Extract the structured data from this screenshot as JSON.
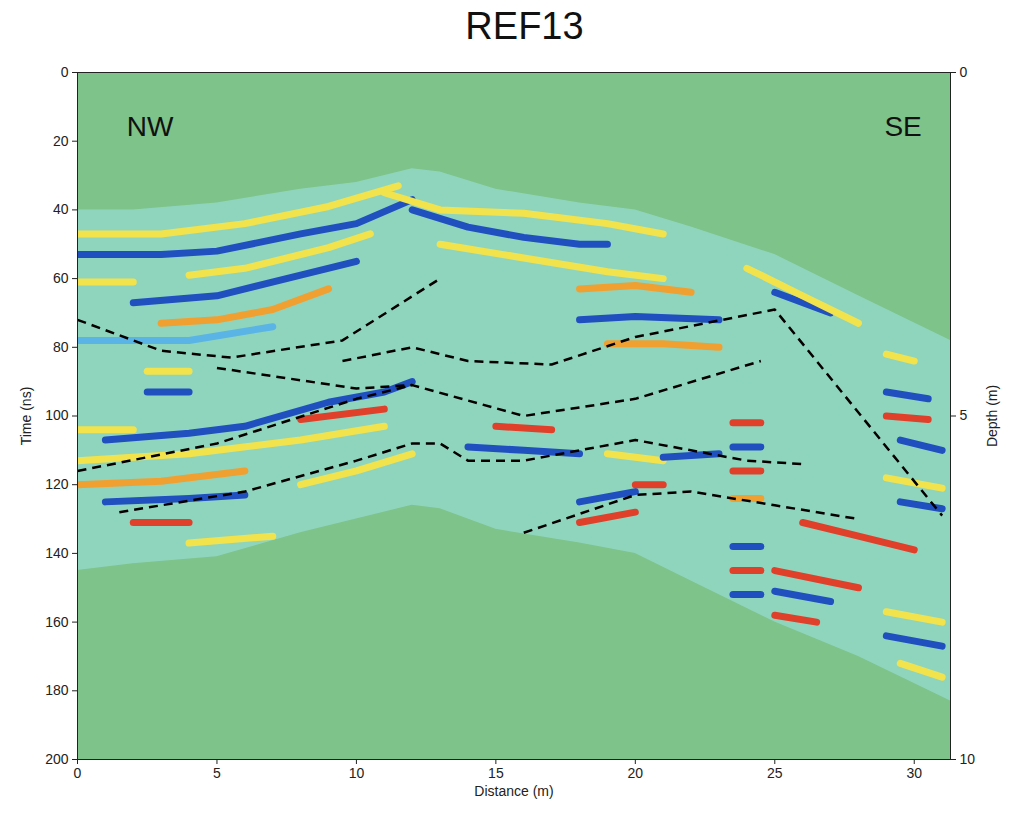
{
  "chart_data": {
    "type": "line",
    "title": "REF13",
    "x_label": "Distance (m)",
    "y_label": "Time (ns)",
    "y2_label": "Depth (m)",
    "xlim": [
      0,
      31.3
    ],
    "xticks": [
      0,
      5,
      10,
      15,
      20,
      25,
      30
    ],
    "ylim": [
      0,
      200
    ],
    "yticks": [
      0,
      20,
      40,
      60,
      80,
      100,
      120,
      140,
      160,
      180,
      200
    ],
    "y2lim": [
      0,
      10
    ],
    "y2ticks": [
      0,
      5,
      10
    ],
    "color": "#7dc38a",
    "grid": false,
    "annotations": [
      {
        "text": "NW",
        "x": 2.6,
        "y": 16
      },
      {
        "text": "SE",
        "x": 29.6,
        "y": 16
      }
    ],
    "series": [
      {
        "type": "area",
        "color": "#8fd5bd",
        "x": [
          0,
          2,
          5,
          8,
          10,
          12,
          13,
          15,
          18,
          20,
          22,
          25,
          28,
          31.3
        ],
        "values": [
          40,
          40,
          38,
          34,
          32,
          28,
          29,
          34,
          38,
          40,
          45,
          53,
          65,
          78
        ],
        "bottom": [
          145,
          143,
          141,
          134,
          130,
          126,
          127,
          133,
          137,
          140,
          148,
          160,
          170,
          183
        ]
      },
      {
        "type": "line",
        "color": "#f2e34c",
        "line_style": "solid",
        "x": [
          0,
          3,
          6,
          9,
          11.5
        ],
        "values": [
          47,
          47,
          44,
          39,
          33
        ]
      },
      {
        "type": "line",
        "color": "#2050c0",
        "line_style": "solid",
        "x": [
          0,
          3,
          5,
          8,
          10,
          12
        ],
        "values": [
          53,
          53,
          52,
          47,
          44,
          37
        ]
      },
      {
        "type": "line",
        "color": "#f2e34c",
        "line_style": "solid",
        "x": [
          0,
          2
        ],
        "values": [
          61,
          61
        ]
      },
      {
        "type": "line",
        "color": "#f2e34c",
        "line_style": "solid",
        "x": [
          4,
          6,
          9,
          10.5
        ],
        "values": [
          59,
          57,
          51,
          47
        ]
      },
      {
        "type": "line",
        "color": "#2050c0",
        "line_style": "solid",
        "x": [
          2,
          5,
          8,
          10
        ],
        "values": [
          67,
          65,
          59,
          55
        ]
      },
      {
        "type": "line",
        "color": "#f0a030",
        "line_style": "solid",
        "x": [
          3,
          5,
          7,
          9
        ],
        "values": [
          73,
          72,
          69,
          63
        ]
      },
      {
        "type": "line",
        "color": "#5ab4e6",
        "line_style": "solid",
        "x": [
          0,
          4,
          7
        ],
        "values": [
          78,
          78,
          74
        ]
      },
      {
        "type": "line",
        "color": "#f2e34c",
        "line_style": "solid",
        "x": [
          2.5,
          4
        ],
        "values": [
          87,
          87
        ]
      },
      {
        "type": "line",
        "color": "#2050c0",
        "line_style": "solid",
        "x": [
          2.5,
          4
        ],
        "values": [
          93,
          93
        ]
      },
      {
        "type": "line",
        "color": "#f2e34c",
        "line_style": "solid",
        "x": [
          0,
          2
        ],
        "values": [
          104,
          104
        ]
      },
      {
        "type": "line",
        "color": "#2050c0",
        "line_style": "solid",
        "x": [
          1,
          4,
          6,
          9,
          11,
          12
        ],
        "values": [
          107,
          105,
          103,
          96,
          93,
          90
        ]
      },
      {
        "type": "line",
        "color": "#e0402a",
        "line_style": "solid",
        "x": [
          8,
          11
        ],
        "values": [
          101,
          98
        ]
      },
      {
        "type": "line",
        "color": "#f2e34c",
        "line_style": "solid",
        "x": [
          0,
          4,
          8,
          11
        ],
        "values": [
          113,
          111,
          107,
          103
        ]
      },
      {
        "type": "line",
        "color": "#f0a030",
        "line_style": "solid",
        "x": [
          0,
          3,
          6
        ],
        "values": [
          120,
          119,
          116
        ]
      },
      {
        "type": "line",
        "color": "#2050c0",
        "line_style": "solid",
        "x": [
          1,
          4,
          6
        ],
        "values": [
          125,
          124,
          123
        ]
      },
      {
        "type": "line",
        "color": "#e0402a",
        "line_style": "solid",
        "x": [
          2,
          4
        ],
        "values": [
          131,
          131
        ]
      },
      {
        "type": "line",
        "color": "#f2e34c",
        "line_style": "solid",
        "x": [
          4,
          7
        ],
        "values": [
          137,
          135
        ]
      },
      {
        "type": "line",
        "color": "#f2e34c",
        "line_style": "solid",
        "x": [
          8,
          10,
          12
        ],
        "values": [
          120,
          116,
          111
        ]
      },
      {
        "type": "line",
        "color": "#f2e34c",
        "line_style": "solid",
        "x": [
          11,
          13,
          16,
          19,
          21
        ],
        "values": [
          35,
          40,
          41,
          44,
          47
        ]
      },
      {
        "type": "line",
        "color": "#2050c0",
        "line_style": "solid",
        "x": [
          12,
          14,
          16,
          18,
          19
        ],
        "values": [
          40,
          45,
          48,
          50,
          50
        ]
      },
      {
        "type": "line",
        "color": "#f2e34c",
        "line_style": "solid",
        "x": [
          13,
          16,
          19,
          21
        ],
        "values": [
          50,
          54,
          58,
          60
        ]
      },
      {
        "type": "line",
        "color": "#f0a030",
        "line_style": "solid",
        "x": [
          18,
          20,
          22
        ],
        "values": [
          63,
          62,
          64
        ]
      },
      {
        "type": "line",
        "color": "#2050c0",
        "line_style": "solid",
        "x": [
          18,
          20,
          23
        ],
        "values": [
          72,
          71,
          72
        ]
      },
      {
        "type": "line",
        "color": "#f0a030",
        "line_style": "solid",
        "x": [
          19,
          21,
          23
        ],
        "values": [
          79,
          79,
          80
        ]
      },
      {
        "type": "line",
        "color": "#e0402a",
        "line_style": "solid",
        "x": [
          15,
          17
        ],
        "values": [
          103,
          104
        ]
      },
      {
        "type": "line",
        "color": "#2050c0",
        "line_style": "solid",
        "x": [
          14,
          16,
          18
        ],
        "values": [
          109,
          110,
          111
        ]
      },
      {
        "type": "line",
        "color": "#f2e34c",
        "line_style": "solid",
        "x": [
          19,
          21
        ],
        "values": [
          111,
          113
        ]
      },
      {
        "type": "line",
        "color": "#2050c0",
        "line_style": "solid",
        "x": [
          18,
          20
        ],
        "values": [
          125,
          122
        ]
      },
      {
        "type": "line",
        "color": "#e0402a",
        "line_style": "solid",
        "x": [
          18,
          20
        ],
        "values": [
          131,
          128
        ]
      },
      {
        "type": "line",
        "color": "#e0402a",
        "line_style": "solid",
        "x": [
          20,
          21
        ],
        "values": [
          120,
          120
        ]
      },
      {
        "type": "line",
        "color": "#2050c0",
        "line_style": "solid",
        "x": [
          21,
          23
        ],
        "values": [
          112,
          111
        ]
      },
      {
        "type": "line",
        "color": "#e0402a",
        "line_style": "solid",
        "x": [
          23.5,
          24.5
        ],
        "values": [
          102,
          102
        ]
      },
      {
        "type": "line",
        "color": "#2050c0",
        "line_style": "solid",
        "x": [
          23.5,
          24.5
        ],
        "values": [
          109,
          109
        ]
      },
      {
        "type": "line",
        "color": "#e0402a",
        "line_style": "solid",
        "x": [
          23.5,
          24.5
        ],
        "values": [
          116,
          116
        ]
      },
      {
        "type": "line",
        "color": "#f0a030",
        "line_style": "solid",
        "x": [
          23.5,
          24.5
        ],
        "values": [
          124,
          124
        ]
      },
      {
        "type": "line",
        "color": "#2050c0",
        "line_style": "solid",
        "x": [
          23.5,
          24.5
        ],
        "values": [
          138,
          138
        ]
      },
      {
        "type": "line",
        "color": "#e0402a",
        "line_style": "solid",
        "x": [
          23.5,
          24.5
        ],
        "values": [
          145,
          145
        ]
      },
      {
        "type": "line",
        "color": "#2050c0",
        "line_style": "solid",
        "x": [
          23.5,
          24.5
        ],
        "values": [
          152,
          152
        ]
      },
      {
        "type": "line",
        "color": "#e0402a",
        "line_style": "solid",
        "x": [
          25,
          26.5
        ],
        "values": [
          158,
          160
        ]
      },
      {
        "type": "line",
        "color": "#2050c0",
        "line_style": "solid",
        "x": [
          25,
          27
        ],
        "values": [
          151,
          154
        ]
      },
      {
        "type": "line",
        "color": "#e0402a",
        "line_style": "solid",
        "x": [
          25,
          28
        ],
        "values": [
          145,
          150
        ]
      },
      {
        "type": "line",
        "color": "#e0402a",
        "line_style": "solid",
        "x": [
          26,
          28,
          30
        ],
        "values": [
          131,
          135,
          139
        ]
      },
      {
        "type": "line",
        "color": "#2050c0",
        "line_style": "solid",
        "x": [
          25,
          27
        ],
        "values": [
          64,
          70
        ]
      },
      {
        "type": "line",
        "color": "#f2e34c",
        "line_style": "solid",
        "x": [
          24,
          26,
          28
        ],
        "values": [
          57,
          65,
          73
        ]
      },
      {
        "type": "line",
        "color": "#f2e34c",
        "line_style": "solid",
        "x": [
          29,
          30
        ],
        "values": [
          82,
          84
        ]
      },
      {
        "type": "line",
        "color": "#2050c0",
        "line_style": "solid",
        "x": [
          29,
          30.5
        ],
        "values": [
          93,
          95
        ]
      },
      {
        "type": "line",
        "color": "#e0402a",
        "line_style": "solid",
        "x": [
          29,
          30.5
        ],
        "values": [
          100,
          101
        ]
      },
      {
        "type": "line",
        "color": "#2050c0",
        "line_style": "solid",
        "x": [
          29.5,
          31
        ],
        "values": [
          107,
          110
        ]
      },
      {
        "type": "line",
        "color": "#f2e34c",
        "line_style": "solid",
        "x": [
          29,
          31
        ],
        "values": [
          118,
          121
        ]
      },
      {
        "type": "line",
        "color": "#2050c0",
        "line_style": "solid",
        "x": [
          29.5,
          31
        ],
        "values": [
          125,
          127
        ]
      },
      {
        "type": "line",
        "color": "#f2e34c",
        "line_style": "solid",
        "x": [
          29,
          31
        ],
        "values": [
          157,
          160
        ]
      },
      {
        "type": "line",
        "color": "#2050c0",
        "line_style": "solid",
        "x": [
          29,
          31
        ],
        "values": [
          164,
          167
        ]
      },
      {
        "type": "line",
        "color": "#f2e34c",
        "line_style": "solid",
        "x": [
          29.5,
          31
        ],
        "values": [
          172,
          176
        ]
      },
      {
        "type": "line",
        "color": "#000000",
        "line_style": "dashed",
        "x": [
          0,
          3,
          5.5,
          9.5,
          13
        ],
        "values": [
          72,
          81,
          83,
          78,
          60
        ]
      },
      {
        "type": "line",
        "color": "#000000",
        "line_style": "dashed",
        "x": [
          9.5,
          12,
          14,
          17,
          20,
          25,
          31
        ],
        "values": [
          84,
          80,
          84,
          85,
          77,
          69,
          129
        ]
      },
      {
        "type": "line",
        "color": "#000000",
        "line_style": "dashed",
        "x": [
          5,
          10,
          12,
          16,
          20,
          24.5
        ],
        "values": [
          86,
          92,
          91,
          100,
          95,
          84
        ]
      },
      {
        "type": "line",
        "color": "#000000",
        "line_style": "dashed",
        "x": [
          0,
          5,
          10,
          12
        ],
        "values": [
          116,
          108,
          95,
          91
        ]
      },
      {
        "type": "line",
        "color": "#000000",
        "line_style": "dashed",
        "x": [
          1.5,
          6,
          10,
          12,
          13,
          14,
          16,
          20,
          24,
          26
        ],
        "values": [
          128,
          122,
          113,
          108,
          108,
          113,
          113,
          107,
          113,
          114
        ]
      },
      {
        "type": "line",
        "color": "#000000",
        "line_style": "dashed",
        "x": [
          16,
          20,
          22,
          25,
          28
        ],
        "values": [
          134,
          123,
          122,
          126,
          130
        ]
      }
    ]
  }
}
